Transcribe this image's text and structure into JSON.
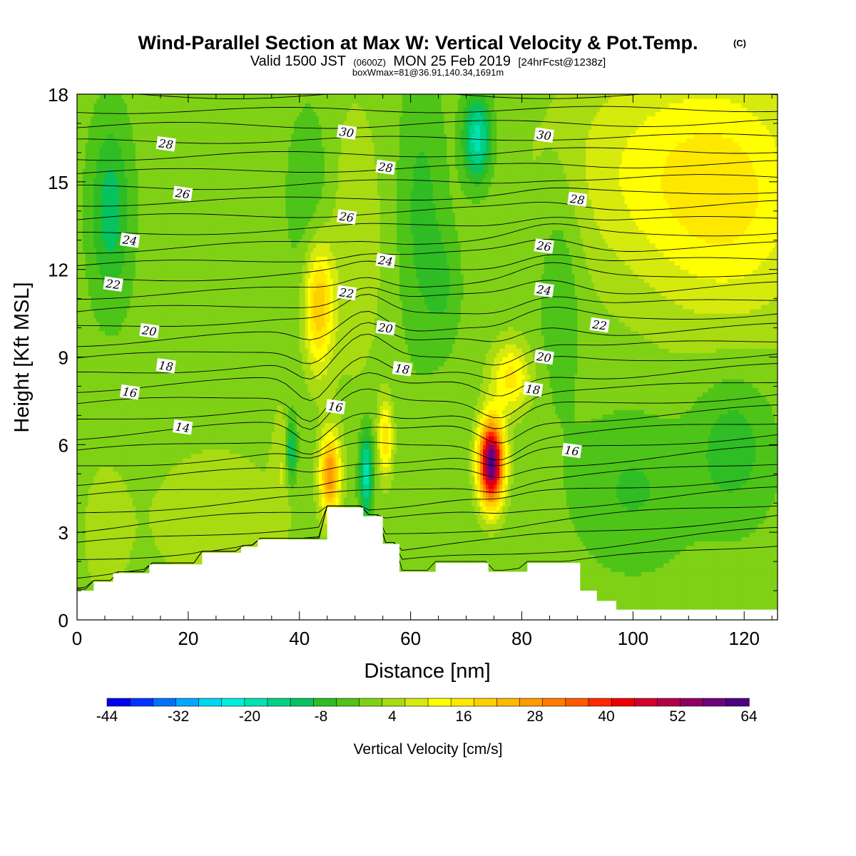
{
  "header": {
    "title": "Wind-Parallel Section at Max W: Vertical Velocity & Pot.Temp.",
    "title_mark": "(C)",
    "sub_valid": "Valid 1500 JST",
    "sub_zulu": "(0600Z)",
    "sub_date": "MON 25 Feb 2019",
    "sub_fcst": "[24hrFcst@1238z]",
    "box_max": "boxWmax=81@36.91,140.34,1691m"
  },
  "chart_data": {
    "type": "heatmap",
    "title": "Wind-Parallel Section at Max W: Vertical Velocity & Pot.Temp.",
    "xlabel": "Distance [nm]",
    "ylabel": "Height [Kft MSL]",
    "xlim": [
      0,
      126
    ],
    "ylim": [
      0,
      18
    ],
    "x_ticks": [
      "0",
      "20",
      "40",
      "60",
      "80",
      "100",
      "120"
    ],
    "y_ticks": [
      "0",
      "3",
      "6",
      "9",
      "12",
      "15",
      "18"
    ],
    "x_tick_values": [
      0,
      20,
      40,
      60,
      80,
      100,
      120
    ],
    "y_tick_values": [
      0,
      3,
      6,
      9,
      12,
      15,
      18
    ],
    "x_minor_step": 5,
    "colorbar": {
      "label": "Vertical Velocity [cm/s]",
      "levels": [
        -44,
        -40,
        -36,
        -32,
        -28,
        -24,
        -20,
        -16,
        -12,
        -8,
        -4,
        0,
        4,
        8,
        12,
        16,
        20,
        24,
        28,
        32,
        36,
        40,
        44,
        48,
        52,
        56,
        60,
        64
      ],
      "tick_labels": [
        "-44",
        "-32",
        "-20",
        "-8",
        "4",
        "16",
        "28",
        "40",
        "52",
        "64"
      ],
      "tick_values": [
        -44,
        -32,
        -20,
        -8,
        4,
        16,
        28,
        40,
        52,
        64
      ],
      "colors": [
        "#0000ee",
        "#0033ff",
        "#0070ff",
        "#00a8ff",
        "#00d7f5",
        "#00eedd",
        "#00e2b0",
        "#00d185",
        "#06c260",
        "#2ebd24",
        "#4fc418",
        "#7fd116",
        "#a8db12",
        "#d6ea0e",
        "#ffff00",
        "#ffe800",
        "#ffd000",
        "#ffb800",
        "#ff9b00",
        "#ff7c00",
        "#ff5a00",
        "#ff2800",
        "#ee0000",
        "#d2002d",
        "#b0004c",
        "#8f0062",
        "#6f007c",
        "#4b0082"
      ]
    },
    "shading_note": "vertical velocity shaded by colorbar levels",
    "updrafts": [
      {
        "x": 74.5,
        "y": 5.4,
        "w_max": 64
      },
      {
        "x": 45.5,
        "y": 5.0,
        "w_max": 30
      },
      {
        "x": 55.5,
        "y": 6.2,
        "w_max": 18
      },
      {
        "x": 43.5,
        "y": 10.8,
        "w_max": 22
      },
      {
        "x": 78.0,
        "y": 8.3,
        "w_max": 16
      },
      {
        "x": 37.0,
        "y": 5.5,
        "w_max": 6
      }
    ],
    "downdrafts": [
      {
        "x": 52.0,
        "y": 5.0,
        "w_min": -20
      },
      {
        "x": 38.5,
        "y": 5.8,
        "w_min": -16
      },
      {
        "x": 72.0,
        "y": 16.5,
        "w_min": -20
      },
      {
        "x": 6.0,
        "y": 14.0,
        "w_min": -12
      }
    ],
    "terrain": [
      {
        "x": 0,
        "y": 1.0
      },
      {
        "x": 3.0,
        "y": 1.3
      },
      {
        "x": 6.5,
        "y": 1.6
      },
      {
        "x": 13.0,
        "y": 1.9
      },
      {
        "x": 22.5,
        "y": 2.3
      },
      {
        "x": 29.5,
        "y": 2.5
      },
      {
        "x": 32.5,
        "y": 2.75
      },
      {
        "x": 45.0,
        "y": 3.85
      },
      {
        "x": 51.5,
        "y": 3.55
      },
      {
        "x": 55.0,
        "y": 2.6
      },
      {
        "x": 58.0,
        "y": 1.65
      },
      {
        "x": 64.5,
        "y": 1.95
      },
      {
        "x": 74.0,
        "y": 1.65
      },
      {
        "x": 81.0,
        "y": 1.95
      },
      {
        "x": 90.5,
        "y": 1.0
      },
      {
        "x": 93.5,
        "y": 0.65
      },
      {
        "x": 97.0,
        "y": 0.35
      },
      {
        "x": 126,
        "y": 0.35
      }
    ],
    "theta_contour_labels": [
      {
        "text": "30",
        "x": 48.5,
        "y": 16.7
      },
      {
        "text": "30",
        "x": 84.0,
        "y": 16.6
      },
      {
        "text": "28",
        "x": 16.0,
        "y": 16.3
      },
      {
        "text": "28",
        "x": 55.5,
        "y": 15.5
      },
      {
        "text": "28",
        "x": 90.0,
        "y": 14.4
      },
      {
        "text": "26",
        "x": 19.0,
        "y": 14.6
      },
      {
        "text": "26",
        "x": 48.5,
        "y": 13.8
      },
      {
        "text": "26",
        "x": 84.0,
        "y": 12.8
      },
      {
        "text": "24",
        "x": 9.5,
        "y": 13.0
      },
      {
        "text": "24",
        "x": 55.5,
        "y": 12.3
      },
      {
        "text": "24",
        "x": 84.0,
        "y": 11.3
      },
      {
        "text": "22",
        "x": 6.5,
        "y": 11.5
      },
      {
        "text": "22",
        "x": 48.5,
        "y": 11.2
      },
      {
        "text": "22",
        "x": 94.0,
        "y": 10.1
      },
      {
        "text": "20",
        "x": 13.0,
        "y": 9.9
      },
      {
        "text": "20",
        "x": 55.5,
        "y": 10.0
      },
      {
        "text": "20",
        "x": 84.0,
        "y": 9.0
      },
      {
        "text": "18",
        "x": 16.0,
        "y": 8.7
      },
      {
        "text": "18",
        "x": 58.5,
        "y": 8.6
      },
      {
        "text": "18",
        "x": 82.0,
        "y": 7.9
      },
      {
        "text": "16",
        "x": 9.5,
        "y": 7.8
      },
      {
        "text": "16",
        "x": 46.5,
        "y": 7.3
      },
      {
        "text": "16",
        "x": 89.0,
        "y": 5.8
      },
      {
        "text": "14",
        "x": 19.0,
        "y": 6.6
      }
    ]
  }
}
